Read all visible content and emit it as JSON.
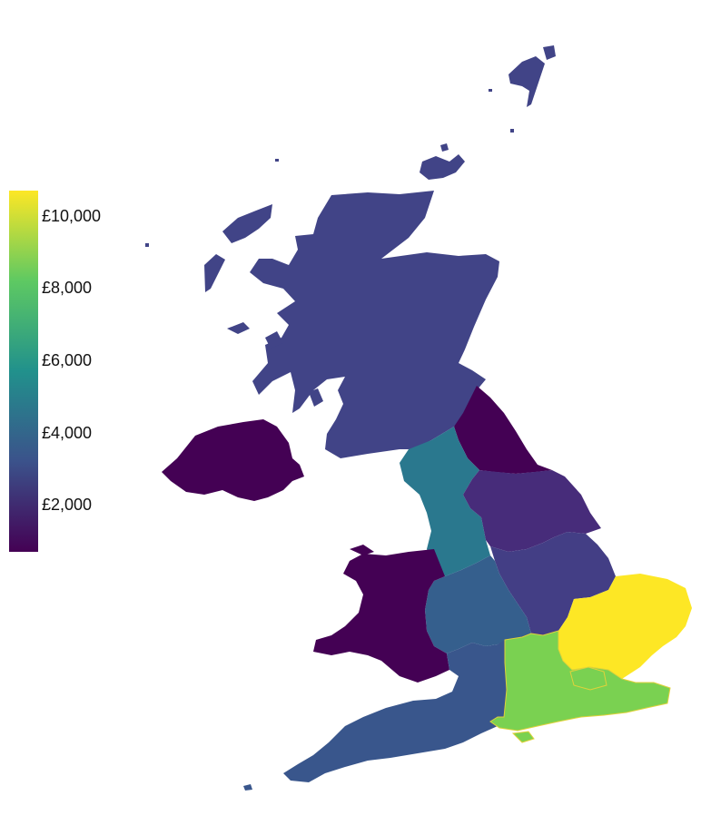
{
  "legend": {
    "gradient": [
      "#440154",
      "#3b528b",
      "#21918c",
      "#5ec962",
      "#fde725"
    ],
    "min": 700,
    "max": 10700,
    "ticks": [
      {
        "value": 10000,
        "label": "£10,000"
      },
      {
        "value": 8000,
        "label": "£8,000"
      },
      {
        "value": 6000,
        "label": "£6,000"
      },
      {
        "value": 4000,
        "label": "£4,000"
      },
      {
        "value": 2000,
        "label": "£2,000"
      }
    ]
  },
  "regions": [
    {
      "id": "scotland",
      "color": "#414487"
    },
    {
      "id": "northern-ireland",
      "color": "#440154"
    },
    {
      "id": "wales",
      "color": "#440154"
    },
    {
      "id": "north-east",
      "color": "#440154"
    },
    {
      "id": "north-west",
      "color": "#2a788e"
    },
    {
      "id": "yorkshire",
      "color": "#472c7a"
    },
    {
      "id": "east-midlands",
      "color": "#433e85"
    },
    {
      "id": "west-midlands",
      "color": "#355f8d"
    },
    {
      "id": "east-of-england",
      "color": "#fde725"
    },
    {
      "id": "london",
      "color": "#7ad151"
    },
    {
      "id": "south-east",
      "color": "#7ad151"
    },
    {
      "id": "south-west",
      "color": "#39568c"
    }
  ]
}
